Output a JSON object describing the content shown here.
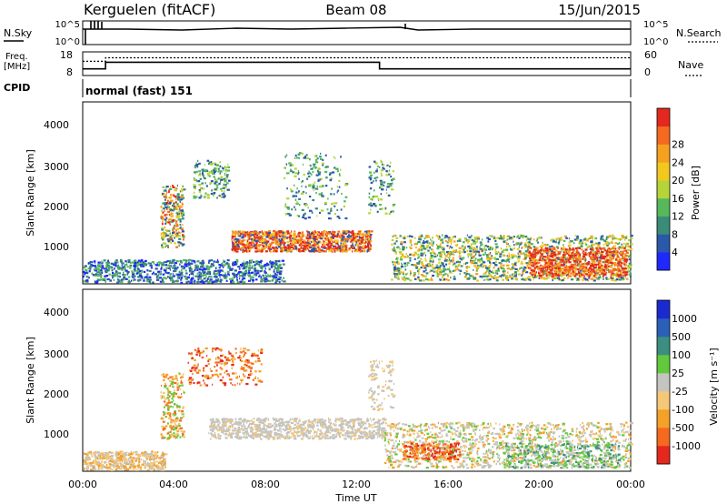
{
  "header": {
    "station": "Kerguelen (fitACF)",
    "beam": "Beam 08",
    "date": "15/Jun/2015"
  },
  "strip_labels": {
    "nsky": "N.Sky",
    "nsearch": "N.Search",
    "freq": "Freq.",
    "freq_unit": "[MHz]",
    "nave": "Nave",
    "cpid": "CPID",
    "cpid_value": "normal (fast) 151"
  },
  "strip_ticks": {
    "nsky_left": [
      "10^5",
      "10^0"
    ],
    "nsky_right": [
      "10^5",
      "10^0"
    ],
    "freq_left": [
      "18",
      "8"
    ],
    "freq_right": [
      "60",
      "0"
    ]
  },
  "chart_data": [
    {
      "type": "line",
      "panel": "frequency",
      "x_unit": "hours UT",
      "series": [
        {
          "name": "Freq.",
          "x": [
            0,
            1.0,
            1.0,
            13.0,
            13.0,
            24
          ],
          "y": [
            10.8,
            10.8,
            13.6,
            13.6,
            10.8,
            10.8
          ]
        },
        {
          "name": "Nave",
          "x": [
            0,
            1.0,
            1.0,
            24
          ],
          "y": [
            36,
            36,
            45,
            45
          ]
        }
      ],
      "ylim_left": [
        8,
        18
      ],
      "ylim_right": [
        0,
        60
      ]
    },
    {
      "type": "heatmap",
      "panel": "power",
      "ylabel": "Slant Range [km]",
      "y_ticks": [
        "1000",
        "2000",
        "3000",
        "4000"
      ],
      "ylim": [
        200,
        4600
      ],
      "colorbar_label": "Power [dB]",
      "colorbar_ticks": [
        "4",
        "8",
        "12",
        "16",
        "20",
        "24",
        "28"
      ],
      "colorbar_colors": [
        "#1e28ff",
        "#2a58aa",
        "#3a8c78",
        "#56b85a",
        "#b6d43a",
        "#f2c81e",
        "#f5a020",
        "#f56a1e",
        "#e4281e"
      ]
    },
    {
      "type": "heatmap",
      "panel": "velocity",
      "ylabel": "Slant Range [km]",
      "y_ticks": [
        "1000",
        "2000",
        "3000",
        "4000"
      ],
      "ylim": [
        200,
        4600
      ],
      "xlabel": "Time UT",
      "x_ticks": [
        "00:00",
        "04:00",
        "08:00",
        "12:00",
        "16:00",
        "20:00",
        "00:00"
      ],
      "colorbar_label": "Velocity [m s⁻¹]",
      "colorbar_ticks": [
        "1000",
        "500",
        "100",
        "25",
        "-25",
        "-100",
        "-500",
        "-1000"
      ],
      "colorbar_colors": [
        "#1a2ad0",
        "#2a60b8",
        "#3c8e80",
        "#62c83c",
        "#c4c4c0",
        "#f5c878",
        "#f5a028",
        "#f56a1e",
        "#e4281e"
      ]
    }
  ]
}
